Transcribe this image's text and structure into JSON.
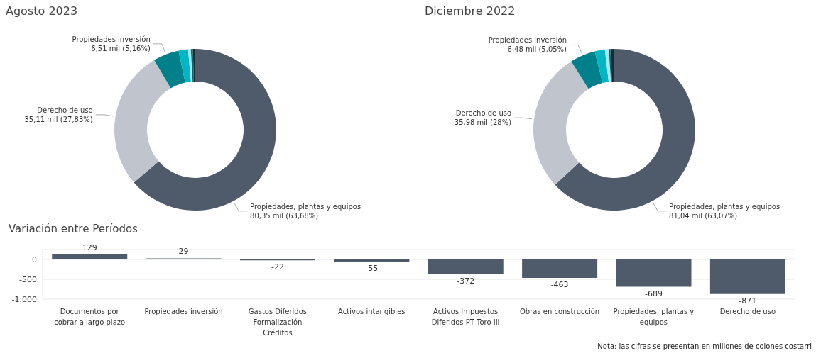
{
  "chart_data": [
    {
      "type": "donut",
      "title": "Agosto 2023",
      "categories": [
        "Propiedades, plantas y equipos",
        "Derecho de uso",
        "Propiedades inversión",
        null,
        null,
        null,
        null
      ],
      "values": [
        80.35,
        35.11,
        6.51,
        2.4,
        0.7,
        0.5,
        0.6
      ],
      "value_labels": [
        "80,35 mil (63,68%)",
        "35,11 mil (27,83%)",
        "6,51 mil (5,16%)",
        null,
        null,
        null,
        null
      ],
      "colors": [
        "#4f5b6b",
        "#c0c5cd",
        "#00808a",
        "#00b5c4",
        "#a8e6ec",
        "#046b70",
        "#1a2a30"
      ]
    },
    {
      "type": "donut",
      "title": "Diciembre 2022",
      "categories": [
        "Propiedades, plantas y equipos",
        "Derecho de uso",
        "Propiedades inversión",
        null,
        null,
        null,
        null
      ],
      "values": [
        81.04,
        35.98,
        6.48,
        2.6,
        1.0,
        0.4,
        1.0
      ],
      "value_labels": [
        "81,04 mil (63,07%)",
        "35,98 mil (28%)",
        "6,48 mil (5,05%)",
        null,
        null,
        null,
        null
      ],
      "colors": [
        "#4f5b6b",
        "#c0c5cd",
        "#00808a",
        "#00b5c4",
        "#a8e6ec",
        "#046b70",
        "#1a2a30"
      ]
    },
    {
      "type": "bar",
      "title": "Variación entre Períodos",
      "categories": [
        "Documentos por cobrar a largo plazo",
        "Propiedades inversión",
        "Gastos Diferidos Formalización Créditos",
        "Activos intangibles",
        "Activos Impuestos Diferidos PT Toro III",
        "Obras en construcción",
        "Propiedades, plantas y equipos",
        "Derecho de uso"
      ],
      "values": [
        129,
        29,
        -22,
        -55,
        -372,
        -463,
        -689,
        -871
      ],
      "color": "#4f5b6b",
      "data_labels": true,
      "ylim": [
        -1000,
        250
      ],
      "yticks": [
        0,
        -500,
        {
          "value": -1000,
          "label": "-1.000"
        }
      ],
      "grid": "y",
      "annotations": [
        "Nota: las cifras se presentan en millones de colones costarri"
      ]
    }
  ]
}
